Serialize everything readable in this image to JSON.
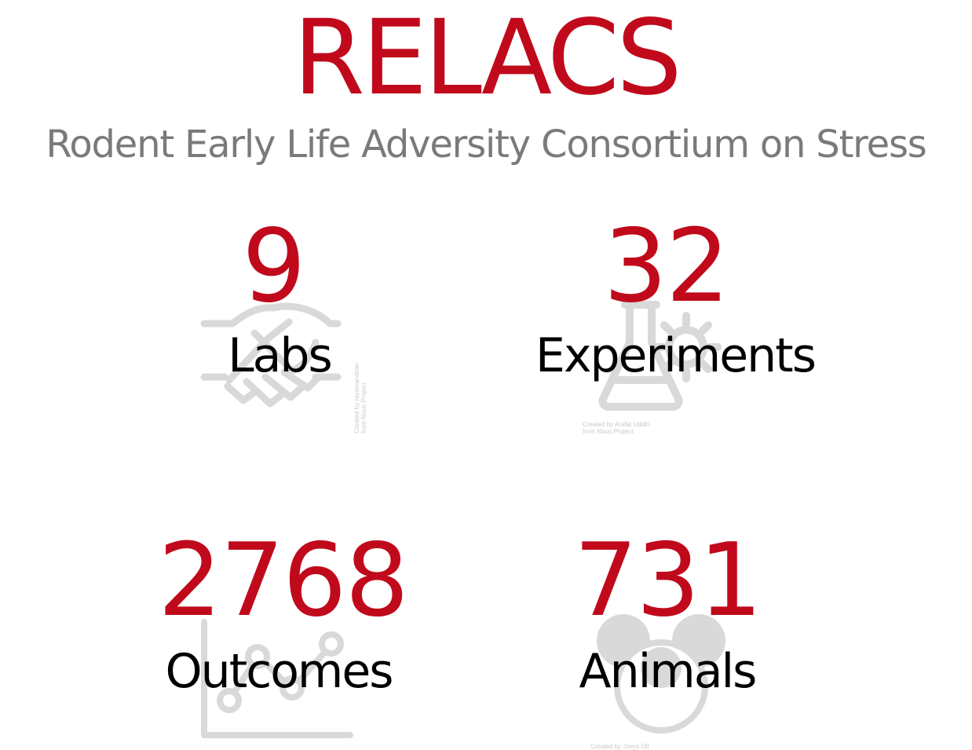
{
  "header": {
    "title": "RELACS",
    "subtitle": "Rodent Early Life Adversity Consortium on Stress"
  },
  "stats": {
    "labs": {
      "number": "9",
      "label": "Labs",
      "icon": "handshake-icon"
    },
    "experiments": {
      "number": "32",
      "label": "Experiments",
      "icon": "flask-gear-icon"
    },
    "outcomes": {
      "number": "2768",
      "label": "Outcomes",
      "icon": "line-chart-icon"
    },
    "animals": {
      "number": "731",
      "label": "Animals",
      "icon": "mouse-head-icon"
    }
  },
  "colors": {
    "accent": "#c00a1c",
    "subtitle": "#7a7a7a",
    "label": "#000000",
    "icon": "#d9d9d9"
  }
}
